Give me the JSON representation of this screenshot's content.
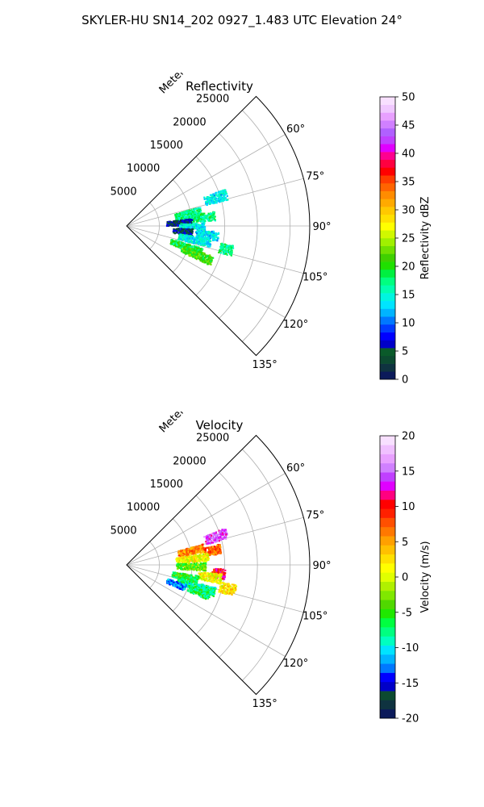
{
  "figure": {
    "suptitle": "SKYLER-HU  SN14_202  0927_1.483 UTC Elevation 24°"
  },
  "chart_data": [
    {
      "type": "polar-sector-heatmap",
      "title": "Reflectivity",
      "radial_label": "Meters",
      "r_ticks": [
        5000,
        10000,
        15000,
        20000,
        25000
      ],
      "rlim": [
        0,
        28000
      ],
      "theta_ticks_deg": [
        60,
        75,
        90,
        105,
        120,
        135
      ],
      "theta_tick_labels": [
        "60°",
        "75°",
        "90°",
        "105°",
        "120°",
        "135°"
      ],
      "theta_range_deg": [
        45,
        135
      ],
      "grid": true,
      "colorbar": {
        "label": "Reflectivity dBZ",
        "vmin": 0,
        "vmax": 50,
        "ticks": [
          0,
          5,
          10,
          15,
          20,
          25,
          30,
          35,
          40,
          45,
          50
        ],
        "colors": [
          "#0b1a5a",
          "#0f3340",
          "#0c4a30",
          "#0a5a2a",
          "#0000c8",
          "#0000ff",
          "#003cff",
          "#0078ff",
          "#00b4ff",
          "#00e4ff",
          "#00f5e0",
          "#00ffb0",
          "#00ff80",
          "#00f040",
          "#20e000",
          "#40d000",
          "#70e000",
          "#a0f000",
          "#d0f800",
          "#ffff00",
          "#ffe000",
          "#ffc800",
          "#ffaa00",
          "#ff8c00",
          "#ff6400",
          "#ff3c00",
          "#ff0000",
          "#ff0040",
          "#ff0090",
          "#e000ff",
          "#c040ff",
          "#b060ff",
          "#d080ff",
          "#e8a0ff",
          "#f0c8ff",
          "#f8e0ff"
        ]
      },
      "echo_regions": [
        {
          "theta_deg": 72,
          "r_from": 12500,
          "r_to": 16000,
          "value": 14
        },
        {
          "theta_deg": 78,
          "r_from": 7500,
          "r_to": 11500,
          "value": 17
        },
        {
          "theta_deg": 83,
          "r_from": 7500,
          "r_to": 13500,
          "value": 17
        },
        {
          "theta_deg": 86,
          "r_from": 6000,
          "r_to": 10000,
          "value": 5
        },
        {
          "theta_deg": 90,
          "r_from": 8000,
          "r_to": 12000,
          "value": 14
        },
        {
          "theta_deg": 95,
          "r_from": 7000,
          "r_to": 10000,
          "value": 5
        },
        {
          "theta_deg": 96,
          "r_from": 10500,
          "r_to": 14000,
          "value": 13
        },
        {
          "theta_deg": 101,
          "r_from": 8000,
          "r_to": 13000,
          "value": 14
        },
        {
          "theta_deg": 103,
          "r_from": 14500,
          "r_to": 16500,
          "value": 17
        },
        {
          "theta_deg": 109,
          "r_from": 7000,
          "r_to": 12000,
          "value": 19
        },
        {
          "theta_deg": 112,
          "r_from": 9000,
          "r_to": 14000,
          "value": 21
        }
      ]
    },
    {
      "type": "polar-sector-heatmap",
      "title": "Velocity",
      "radial_label": "Meters",
      "r_ticks": [
        5000,
        10000,
        15000,
        20000,
        25000
      ],
      "rlim": [
        0,
        28000
      ],
      "theta_ticks_deg": [
        60,
        75,
        90,
        105,
        120,
        135
      ],
      "theta_tick_labels": [
        "60°",
        "75°",
        "90°",
        "105°",
        "120°",
        "135°"
      ],
      "theta_range_deg": [
        45,
        135
      ],
      "grid": true,
      "colorbar": {
        "label": "Velocity (m/s)",
        "vmin": -20,
        "vmax": 20,
        "ticks": [
          -20,
          -15,
          -10,
          -5,
          0,
          5,
          10,
          15,
          20
        ],
        "colors": [
          "#0b1a5a",
          "#0f3340",
          "#0c4a30",
          "#0000c8",
          "#0000ff",
          "#0078ff",
          "#00b4ff",
          "#00e4ff",
          "#00ffc0",
          "#00ff80",
          "#00ff40",
          "#20e800",
          "#50d800",
          "#80e800",
          "#b0f000",
          "#e0ff00",
          "#ffff00",
          "#ffe000",
          "#ffc000",
          "#ffa000",
          "#ff7800",
          "#ff5000",
          "#ff2000",
          "#ff0000",
          "#ff0080",
          "#e000ff",
          "#c040ff",
          "#d080ff",
          "#e8a0ff",
          "#f0c0ff",
          "#f8e0ff"
        ]
      },
      "echo_regions": [
        {
          "theta_deg": 72,
          "r_from": 12500,
          "r_to": 16000,
          "value": 14
        },
        {
          "theta_deg": 77,
          "r_from": 8000,
          "r_to": 12000,
          "value": 6
        },
        {
          "theta_deg": 80,
          "r_from": 12000,
          "r_to": 14500,
          "value": 7
        },
        {
          "theta_deg": 84,
          "r_from": 7500,
          "r_to": 12500,
          "value": 1
        },
        {
          "theta_deg": 91,
          "r_from": 7500,
          "r_to": 12000,
          "value": -4
        },
        {
          "theta_deg": 95,
          "r_from": 13000,
          "r_to": 15000,
          "value": 10
        },
        {
          "theta_deg": 98,
          "r_from": 11000,
          "r_to": 14500,
          "value": 1
        },
        {
          "theta_deg": 101,
          "r_from": 7000,
          "r_to": 11000,
          "value": -6
        },
        {
          "theta_deg": 103,
          "r_from": 14500,
          "r_to": 17000,
          "value": 2
        },
        {
          "theta_deg": 107,
          "r_from": 8000,
          "r_to": 14000,
          "value": -8
        },
        {
          "theta_deg": 111,
          "r_from": 6500,
          "r_to": 9500,
          "value": -12
        },
        {
          "theta_deg": 110,
          "r_from": 10000,
          "r_to": 13500,
          "value": -7
        }
      ]
    }
  ]
}
